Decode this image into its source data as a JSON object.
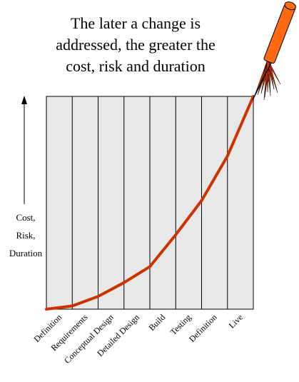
{
  "title_lines": [
    "The later a change is",
    "addressed, the greater the",
    "cost, risk and duration"
  ],
  "ylabel_lines": [
    "Cost,",
    "Risk,",
    "Duration"
  ],
  "colors": {
    "panel_fill": "#e8e8e8",
    "grid": "#000000",
    "curve": "#cc3300",
    "rocket_body": "#ff6a13",
    "rocket_flame": "#cc3300"
  },
  "chart_data": {
    "type": "line",
    "categories": [
      "Definition",
      "Requirements",
      "Conceptual Design",
      "Detailed Design",
      "Build",
      "Testing",
      "Definition",
      "Live"
    ],
    "x": [
      0,
      1,
      2,
      3,
      4,
      5,
      6,
      7,
      8
    ],
    "values": [
      0,
      1.5,
      6,
      12.5,
      20,
      35,
      51,
      72,
      100
    ],
    "ylim": [
      0,
      100
    ],
    "xlabel": "",
    "ylabel": "Cost, Risk, Duration",
    "title": "The later a change is addressed, the greater the cost, risk and duration",
    "grid": true
  }
}
